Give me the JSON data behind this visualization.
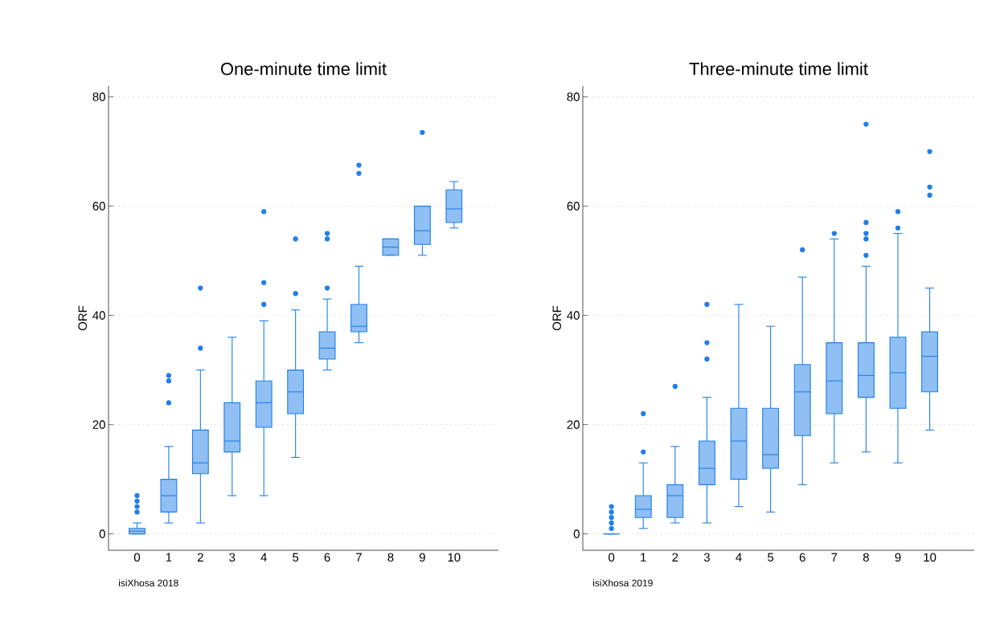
{
  "chart_data": [
    {
      "type": "box",
      "title": "One-minute time limit",
      "ylabel": "ORF",
      "color": "#1f7fe8",
      "categories": [
        "0",
        "1",
        "2",
        "3",
        "4",
        "5",
        "6",
        "7",
        "8",
        "9",
        "10"
      ],
      "boxes": [
        {
          "low": 0,
          "q1": 0,
          "median": 0.5,
          "q3": 1,
          "high": 2,
          "outliers": [
            4,
            5,
            6,
            7
          ]
        },
        {
          "low": 2,
          "q1": 4,
          "median": 7,
          "q3": 10,
          "high": 16,
          "outliers": [
            24,
            28,
            29
          ]
        },
        {
          "low": 2,
          "q1": 11,
          "median": 13,
          "q3": 19,
          "high": 30,
          "outliers": [
            34,
            45
          ]
        },
        {
          "low": 7,
          "q1": 15,
          "median": 17,
          "q3": 24,
          "high": 36
        },
        {
          "low": 7,
          "q1": 19.5,
          "median": 24,
          "q3": 28,
          "high": 39,
          "outliers": [
            42,
            46,
            59
          ]
        },
        {
          "low": 14,
          "q1": 22,
          "median": 26,
          "q3": 30,
          "high": 41,
          "outliers": [
            44,
            54
          ]
        },
        {
          "low": 30,
          "q1": 32,
          "median": 34,
          "q3": 37,
          "high": 43,
          "outliers": [
            45,
            54,
            55
          ]
        },
        {
          "low": 35,
          "q1": 37,
          "median": 38,
          "q3": 42,
          "high": 49,
          "outliers": [
            66,
            67.5
          ]
        },
        {
          "low": 51,
          "q1": 51,
          "median": 52.5,
          "q3": 54,
          "high": 54
        },
        {
          "low": 51,
          "q1": 53,
          "median": 55.5,
          "q3": 60,
          "high": 60,
          "outliers": [
            73.5
          ]
        },
        {
          "low": 56,
          "q1": 57,
          "median": 59.5,
          "q3": 63,
          "high": 64.5
        }
      ],
      "ylim": [
        -3,
        82
      ],
      "yticks": [
        0,
        20,
        40,
        60,
        80
      ],
      "grid": "y",
      "annotations": [
        "isiXhosa 2018"
      ]
    },
    {
      "type": "box",
      "title": "Three-minute time limit",
      "ylabel": "ORF",
      "color": "#1f7fe8",
      "categories": [
        "0",
        "1",
        "2",
        "3",
        "4",
        "5",
        "6",
        "7",
        "8",
        "9",
        "10"
      ],
      "boxes": [
        {
          "low": 0,
          "q1": 0,
          "median": 0,
          "q3": 0,
          "high": 0,
          "outliers": [
            1,
            2,
            3,
            4,
            5
          ]
        },
        {
          "low": 1,
          "q1": 3,
          "median": 4.5,
          "q3": 7,
          "high": 13,
          "outliers": [
            15,
            22
          ]
        },
        {
          "low": 2,
          "q1": 3,
          "median": 7,
          "q3": 9,
          "high": 16,
          "outliers": [
            27
          ]
        },
        {
          "low": 2,
          "q1": 9,
          "median": 12,
          "q3": 17,
          "high": 25,
          "outliers": [
            32,
            35,
            42
          ]
        },
        {
          "low": 5,
          "q1": 10,
          "median": 17,
          "q3": 23,
          "high": 42
        },
        {
          "low": 4,
          "q1": 12,
          "median": 14.5,
          "q3": 23,
          "high": 38
        },
        {
          "low": 9,
          "q1": 18,
          "median": 26,
          "q3": 31,
          "high": 47,
          "outliers": [
            52
          ]
        },
        {
          "low": 13,
          "q1": 22,
          "median": 28,
          "q3": 35,
          "high": 54,
          "outliers": [
            55
          ]
        },
        {
          "low": 15,
          "q1": 25,
          "median": 29,
          "q3": 35,
          "high": 49,
          "outliers": [
            51,
            54,
            55,
            57,
            75
          ]
        },
        {
          "low": 13,
          "q1": 23,
          "median": 29.5,
          "q3": 36,
          "high": 55,
          "outliers": [
            56,
            59
          ]
        },
        {
          "low": 19,
          "q1": 26,
          "median": 32.5,
          "q3": 37,
          "high": 45,
          "outliers": [
            62,
            63.5,
            70
          ]
        }
      ],
      "ylim": [
        -3,
        82
      ],
      "yticks": [
        0,
        20,
        40,
        60,
        80
      ],
      "grid": "y",
      "annotations": [
        "isiXhosa 2019"
      ]
    }
  ]
}
